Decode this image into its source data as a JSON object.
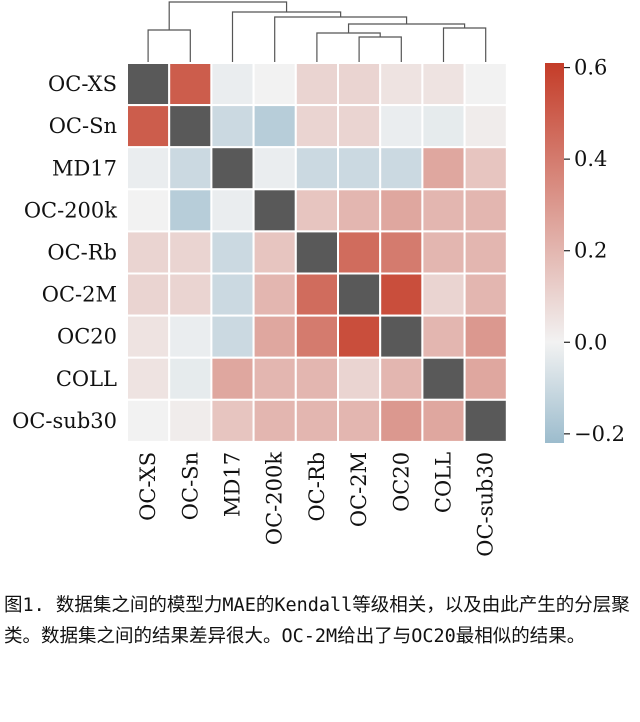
{
  "chart_data": {
    "type": "heatmap",
    "title": "",
    "rows": [
      "OC-XS",
      "OC-Sn",
      "MD17",
      "OC-200k",
      "OC-Rb",
      "OC-2M",
      "OC20",
      "COLL",
      "OC-sub30"
    ],
    "cols": [
      "OC-XS",
      "OC-Sn",
      "MD17",
      "OC-200k",
      "OC-Rb",
      "OC-2M",
      "OC20",
      "COLL",
      "OC-sub30"
    ],
    "values": [
      [
        1.0,
        0.5,
        -0.02,
        0.0,
        0.1,
        0.1,
        0.05,
        0.05,
        0.0
      ],
      [
        0.5,
        1.0,
        -0.1,
        -0.15,
        0.1,
        0.1,
        -0.02,
        -0.03,
        0.02
      ],
      [
        -0.02,
        -0.1,
        1.0,
        -0.02,
        -0.1,
        -0.1,
        -0.1,
        0.25,
        0.15
      ],
      [
        0.0,
        -0.15,
        -0.02,
        1.0,
        0.15,
        0.2,
        0.25,
        0.2,
        0.2
      ],
      [
        0.1,
        0.1,
        -0.1,
        0.15,
        1.0,
        0.45,
        0.4,
        0.2,
        0.2
      ],
      [
        0.1,
        0.1,
        -0.1,
        0.2,
        0.45,
        1.0,
        0.55,
        0.1,
        0.2
      ],
      [
        0.05,
        -0.02,
        -0.1,
        0.25,
        0.4,
        0.55,
        1.0,
        0.2,
        0.3
      ],
      [
        0.05,
        -0.03,
        0.25,
        0.2,
        0.2,
        0.1,
        0.2,
        1.0,
        0.25
      ],
      [
        0.0,
        0.02,
        0.15,
        0.2,
        0.2,
        0.2,
        0.3,
        0.25,
        1.0
      ]
    ],
    "diagonal_color": "#595959",
    "colorbar": {
      "min": -0.22,
      "max": 0.61,
      "ticks": [
        -0.2,
        0.0,
        0.2,
        0.4,
        0.6
      ],
      "tick_labels": [
        "−0.2",
        "0.0",
        "0.2",
        "0.4",
        "0.6"
      ],
      "low_color": "#9cbccd",
      "mid_color": "#f2f2f2",
      "high_color": "#c43c28"
    },
    "dendrogram": {
      "placement": "top",
      "leaf_order": [
        "OC-XS",
        "OC-Sn",
        "MD17",
        "OC-200k",
        "OC-Rb",
        "OC-2M",
        "OC20",
        "COLL",
        "OC-sub30"
      ]
    },
    "grid": false,
    "legend": "colorbar-right"
  },
  "caption": "图1. 数据集之间的模型力MAE的Kendall等级相关，以及由此产生的分层聚类。数据集之间的结果差异很大。OC-2M给出了与OC20最相似的结果。"
}
